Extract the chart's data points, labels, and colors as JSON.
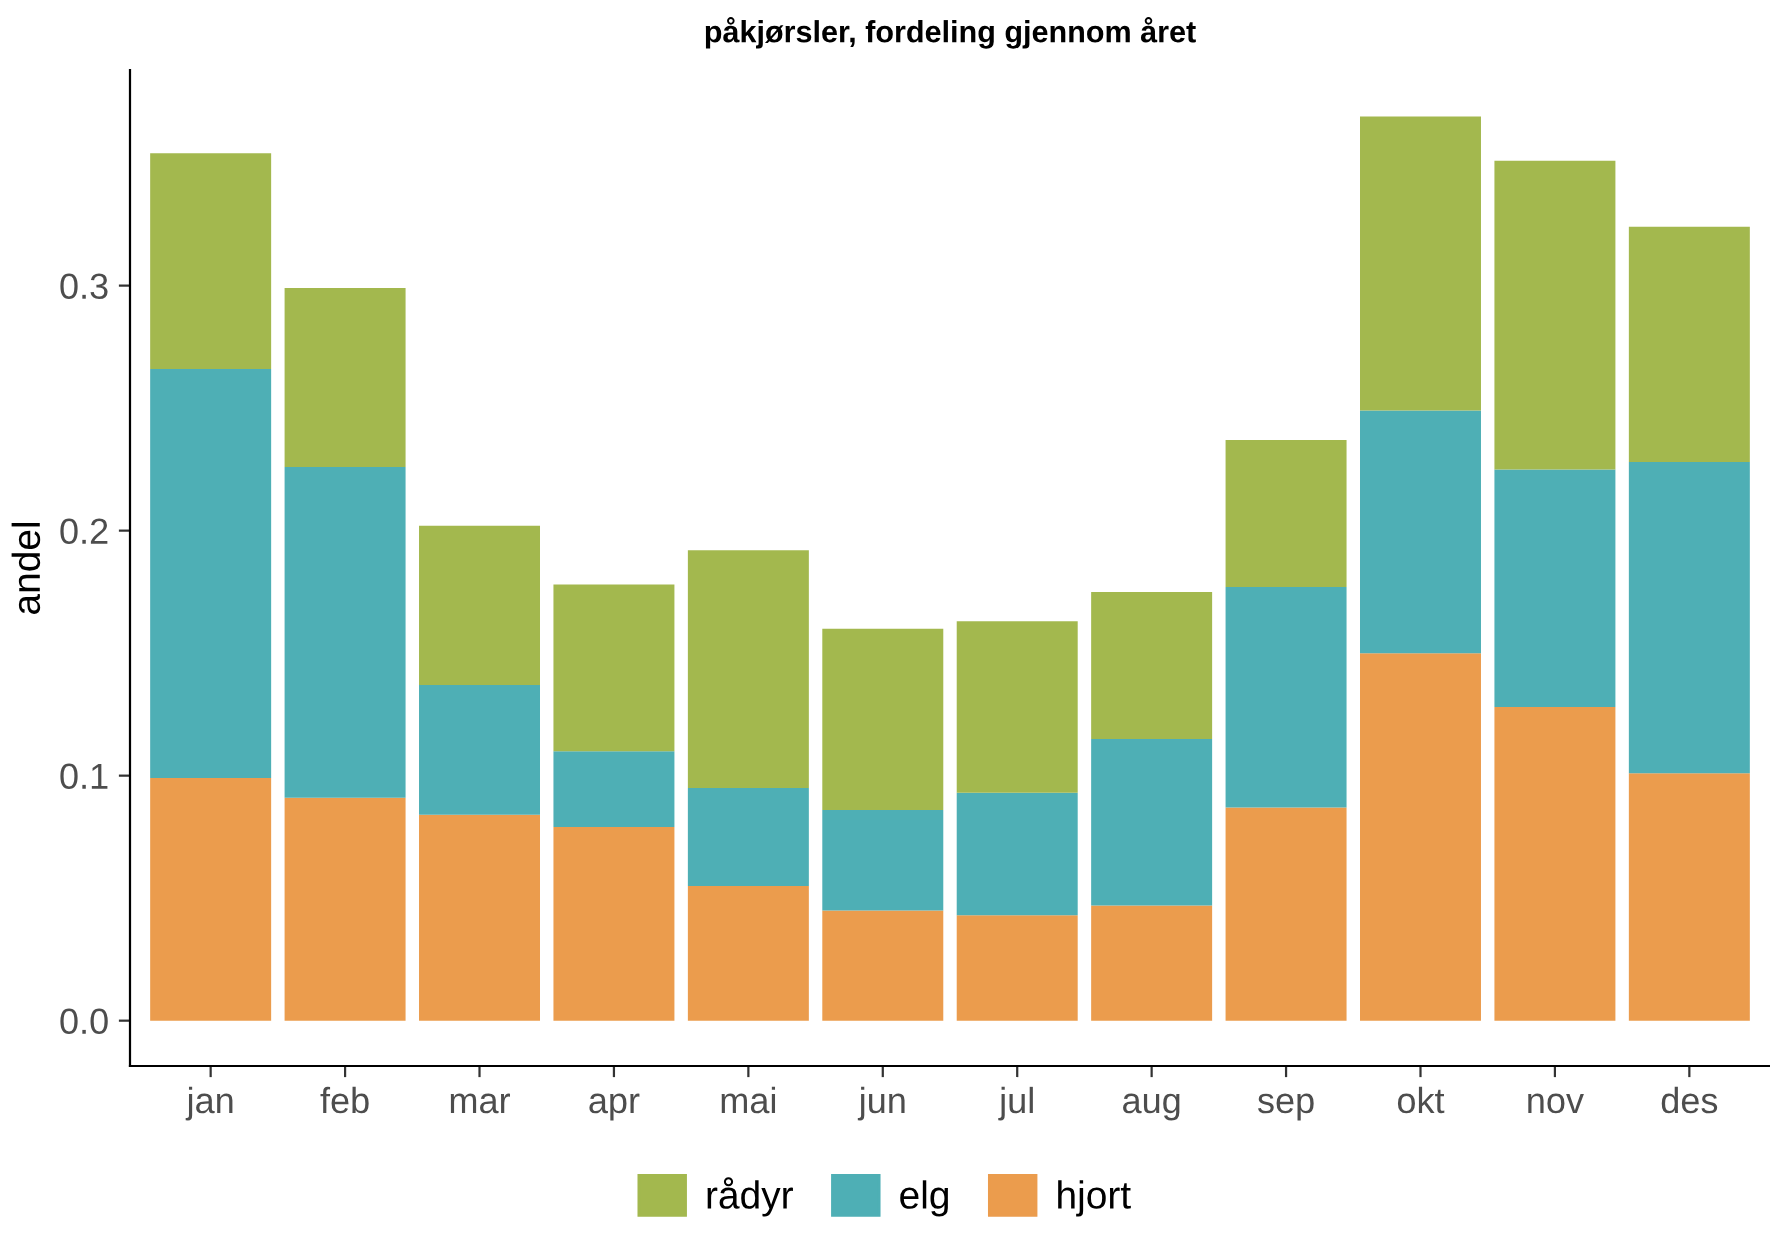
{
  "chart_data": {
    "type": "bar",
    "title": "påkjørsler, fordeling gjennom året",
    "ylabel": "andel",
    "categories": [
      "jan",
      "feb",
      "mar",
      "apr",
      "mai",
      "jun",
      "jul",
      "aug",
      "sep",
      "okt",
      "nov",
      "des"
    ],
    "stacked": true,
    "series": [
      {
        "name": "hjort",
        "color": "#eb9c4d",
        "values": [
          0.099,
          0.091,
          0.084,
          0.079,
          0.055,
          0.045,
          0.043,
          0.047,
          0.087,
          0.15,
          0.128,
          0.101
        ]
      },
      {
        "name": "elg",
        "color": "#4eafb5",
        "values": [
          0.167,
          0.135,
          0.053,
          0.031,
          0.04,
          0.041,
          0.05,
          0.068,
          0.09,
          0.099,
          0.097,
          0.127
        ]
      },
      {
        "name": "rådyr",
        "color": "#a3b84e",
        "values": [
          0.088,
          0.073,
          0.065,
          0.068,
          0.097,
          0.074,
          0.07,
          0.06,
          0.06,
          0.12,
          0.126,
          0.096
        ]
      }
    ],
    "ylim": [
      -0.0185,
      0.388
    ],
    "yticks": [
      {
        "value": 0,
        "label": "0.0"
      },
      0.1,
      0.2,
      0.3
    ],
    "grid": false,
    "legend": "bottom"
  }
}
